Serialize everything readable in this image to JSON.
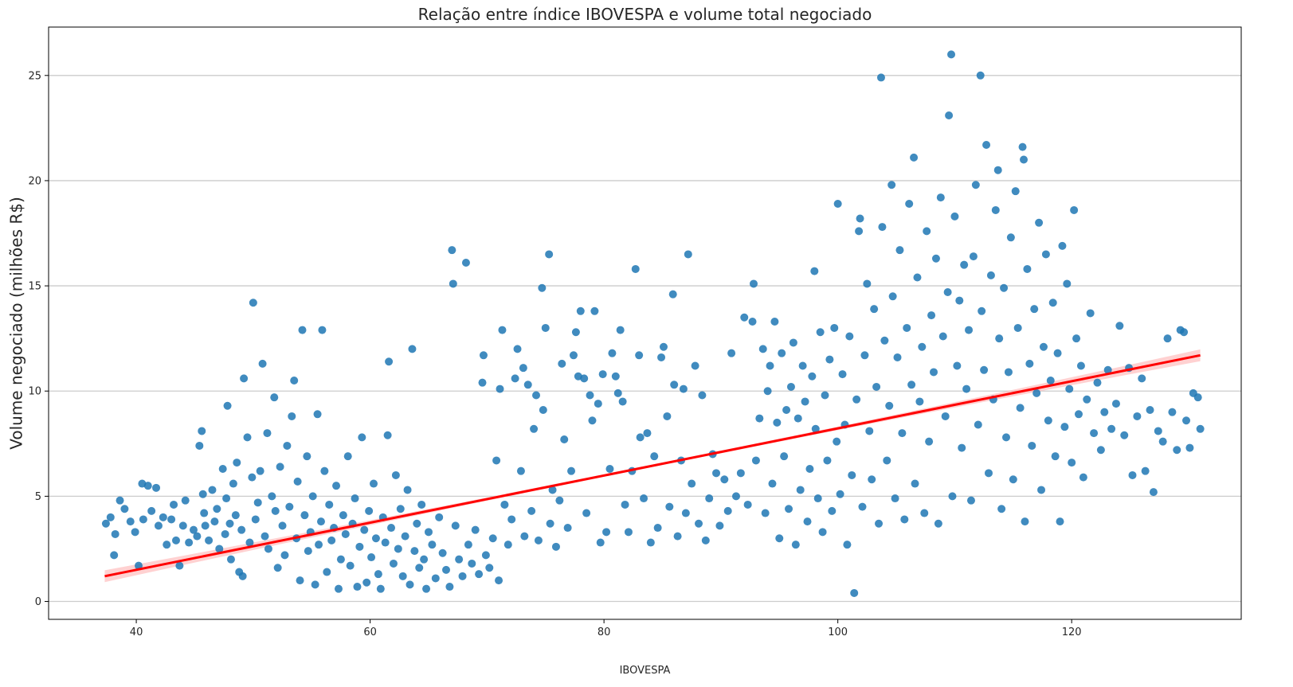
{
  "chart_data": {
    "type": "scatter",
    "title": "Relação entre índice IBOVESPA e volume total negociado",
    "xlabel": "IBOVESPA",
    "ylabel": "Volume negociado (milhões R$)",
    "xlim": [
      32.5,
      134.5
    ],
    "ylim": [
      -0.85,
      27.3
    ],
    "xticks": [
      40,
      60,
      80,
      100,
      120
    ],
    "yticks": [
      0,
      5,
      10,
      15,
      20,
      25
    ],
    "xtick_labels": [
      "40",
      "60",
      "80",
      "100",
      "120"
    ],
    "ytick_labels": [
      "0",
      "5",
      "10",
      "15",
      "20",
      "25"
    ],
    "grid": "horizontal",
    "colors": {
      "points": "#1f77b4",
      "regression_line": "#ff0000",
      "confidence_band": "#ffb3b3",
      "grid": "#cccccc",
      "axes": "#000000"
    },
    "regression": {
      "x_start": 37.3,
      "x_end": 131.0,
      "y_start": 1.2,
      "y_end": 11.7
    },
    "points": [
      [
        37.4,
        3.7
      ],
      [
        37.8,
        4.0
      ],
      [
        38.2,
        3.2
      ],
      [
        38.1,
        2.2
      ],
      [
        38.6,
        4.8
      ],
      [
        39.0,
        4.4
      ],
      [
        39.5,
        3.8
      ],
      [
        39.9,
        3.3
      ],
      [
        40.2,
        1.7
      ],
      [
        40.6,
        3.9
      ],
      [
        40.5,
        5.6
      ],
      [
        41.0,
        5.5
      ],
      [
        41.3,
        4.3
      ],
      [
        41.7,
        5.4
      ],
      [
        41.9,
        3.6
      ],
      [
        42.3,
        4.0
      ],
      [
        42.6,
        2.7
      ],
      [
        43.0,
        3.9
      ],
      [
        43.2,
        4.6
      ],
      [
        43.4,
        2.9
      ],
      [
        43.7,
        1.7
      ],
      [
        44.0,
        3.6
      ],
      [
        44.2,
        4.8
      ],
      [
        44.5,
        2.8
      ],
      [
        44.9,
        3.4
      ],
      [
        45.2,
        3.1
      ],
      [
        45.4,
        7.4
      ],
      [
        45.6,
        8.1
      ],
      [
        45.7,
        5.1
      ],
      [
        45.8,
        4.2
      ],
      [
        45.9,
        3.6
      ],
      [
        46.2,
        2.9
      ],
      [
        46.5,
        5.3
      ],
      [
        46.7,
        3.8
      ],
      [
        46.9,
        4.4
      ],
      [
        47.1,
        2.5
      ],
      [
        47.4,
        6.3
      ],
      [
        47.6,
        3.2
      ],
      [
        47.7,
        4.9
      ],
      [
        47.8,
        9.3
      ],
      [
        48.0,
        3.7
      ],
      [
        48.1,
        2.0
      ],
      [
        48.3,
        5.6
      ],
      [
        48.5,
        4.1
      ],
      [
        48.6,
        6.6
      ],
      [
        48.8,
        1.4
      ],
      [
        49.0,
        3.4
      ],
      [
        49.1,
        1.2
      ],
      [
        49.2,
        10.6
      ],
      [
        49.5,
        7.8
      ],
      [
        49.7,
        2.8
      ],
      [
        49.9,
        5.9
      ],
      [
        50.0,
        14.2
      ],
      [
        50.2,
        3.9
      ],
      [
        50.4,
        4.7
      ],
      [
        50.6,
        6.2
      ],
      [
        50.8,
        11.3
      ],
      [
        51.0,
        3.1
      ],
      [
        51.2,
        8.0
      ],
      [
        51.3,
        2.5
      ],
      [
        51.6,
        5.0
      ],
      [
        51.8,
        9.7
      ],
      [
        51.9,
        4.3
      ],
      [
        52.1,
        1.6
      ],
      [
        52.3,
        6.4
      ],
      [
        52.5,
        3.6
      ],
      [
        52.7,
        2.2
      ],
      [
        52.9,
        7.4
      ],
      [
        53.1,
        4.5
      ],
      [
        53.3,
        8.8
      ],
      [
        53.5,
        10.5
      ],
      [
        53.7,
        3.0
      ],
      [
        53.8,
        5.7
      ],
      [
        54.0,
        1.0
      ],
      [
        54.2,
        12.9
      ],
      [
        54.4,
        4.1
      ],
      [
        54.6,
        6.9
      ],
      [
        54.7,
        2.4
      ],
      [
        54.9,
        3.3
      ],
      [
        55.1,
        5.0
      ],
      [
        55.3,
        0.8
      ],
      [
        55.5,
        8.9
      ],
      [
        55.6,
        2.7
      ],
      [
        55.8,
        3.8
      ],
      [
        55.9,
        12.9
      ],
      [
        56.1,
        6.2
      ],
      [
        56.3,
        1.4
      ],
      [
        56.5,
        4.6
      ],
      [
        56.7,
        2.9
      ],
      [
        56.9,
        3.5
      ],
      [
        57.1,
        5.5
      ],
      [
        57.3,
        0.6
      ],
      [
        57.5,
        2.0
      ],
      [
        57.7,
        4.1
      ],
      [
        57.9,
        3.2
      ],
      [
        58.1,
        6.9
      ],
      [
        58.3,
        1.7
      ],
      [
        58.5,
        3.7
      ],
      [
        58.7,
        4.9
      ],
      [
        58.9,
        0.7
      ],
      [
        59.1,
        2.6
      ],
      [
        59.3,
        7.8
      ],
      [
        59.5,
        3.4
      ],
      [
        59.7,
        0.9
      ],
      [
        59.9,
        4.3
      ],
      [
        60.1,
        2.1
      ],
      [
        60.3,
        5.6
      ],
      [
        60.5,
        3.0
      ],
      [
        60.7,
        1.3
      ],
      [
        60.9,
        0.6
      ],
      [
        61.1,
        4.0
      ],
      [
        61.3,
        2.8
      ],
      [
        61.5,
        7.9
      ],
      [
        61.6,
        11.4
      ],
      [
        61.8,
        3.5
      ],
      [
        62.0,
        1.8
      ],
      [
        62.2,
        6.0
      ],
      [
        62.4,
        2.5
      ],
      [
        62.6,
        4.4
      ],
      [
        62.8,
        1.2
      ],
      [
        63.0,
        3.1
      ],
      [
        63.2,
        5.3
      ],
      [
        63.4,
        0.8
      ],
      [
        63.6,
        12.0
      ],
      [
        63.8,
        2.4
      ],
      [
        64.0,
        3.7
      ],
      [
        64.2,
        1.6
      ],
      [
        64.4,
        4.6
      ],
      [
        64.6,
        2.0
      ],
      [
        64.8,
        0.6
      ],
      [
        65.0,
        3.3
      ],
      [
        65.3,
        2.7
      ],
      [
        65.6,
        1.1
      ],
      [
        65.9,
        4.0
      ],
      [
        66.2,
        2.3
      ],
      [
        66.5,
        1.5
      ],
      [
        66.8,
        0.7
      ],
      [
        67.0,
        16.7
      ],
      [
        67.1,
        15.1
      ],
      [
        67.3,
        3.6
      ],
      [
        67.6,
        2.0
      ],
      [
        67.9,
        1.2
      ],
      [
        68.2,
        16.1
      ],
      [
        68.4,
        2.7
      ],
      [
        68.7,
        1.8
      ],
      [
        69.0,
        3.4
      ],
      [
        69.3,
        1.3
      ],
      [
        69.6,
        10.4
      ],
      [
        69.7,
        11.7
      ],
      [
        69.9,
        2.2
      ],
      [
        70.2,
        1.6
      ],
      [
        70.5,
        3.0
      ],
      [
        70.8,
        6.7
      ],
      [
        71.0,
        1.0
      ],
      [
        71.1,
        10.1
      ],
      [
        71.3,
        12.9
      ],
      [
        71.5,
        4.6
      ],
      [
        71.8,
        2.7
      ],
      [
        72.1,
        3.9
      ],
      [
        72.4,
        10.6
      ],
      [
        72.6,
        12.0
      ],
      [
        72.9,
        6.2
      ],
      [
        73.1,
        11.1
      ],
      [
        73.2,
        3.1
      ],
      [
        73.5,
        10.3
      ],
      [
        73.8,
        4.3
      ],
      [
        74.0,
        8.2
      ],
      [
        74.2,
        9.8
      ],
      [
        74.4,
        2.9
      ],
      [
        74.7,
        14.9
      ],
      [
        74.8,
        9.1
      ],
      [
        75.0,
        13.0
      ],
      [
        75.3,
        16.5
      ],
      [
        75.4,
        3.7
      ],
      [
        75.6,
        5.3
      ],
      [
        75.9,
        2.6
      ],
      [
        76.2,
        4.8
      ],
      [
        76.4,
        11.3
      ],
      [
        76.6,
        7.7
      ],
      [
        76.9,
        3.5
      ],
      [
        77.2,
        6.2
      ],
      [
        77.4,
        11.7
      ],
      [
        77.6,
        12.8
      ],
      [
        77.8,
        10.7
      ],
      [
        78.0,
        13.8
      ],
      [
        78.3,
        10.6
      ],
      [
        78.5,
        4.2
      ],
      [
        78.8,
        9.8
      ],
      [
        79.0,
        8.6
      ],
      [
        79.2,
        13.8
      ],
      [
        79.5,
        9.4
      ],
      [
        79.7,
        2.8
      ],
      [
        79.9,
        10.8
      ],
      [
        80.2,
        3.3
      ],
      [
        80.5,
        6.3
      ],
      [
        80.7,
        11.8
      ],
      [
        81.0,
        10.7
      ],
      [
        81.2,
        9.9
      ],
      [
        81.4,
        12.9
      ],
      [
        81.6,
        9.5
      ],
      [
        81.8,
        4.6
      ],
      [
        82.1,
        3.3
      ],
      [
        82.4,
        6.2
      ],
      [
        82.7,
        15.8
      ],
      [
        83.0,
        11.7
      ],
      [
        83.1,
        7.8
      ],
      [
        83.4,
        4.9
      ],
      [
        83.7,
        8.0
      ],
      [
        84.0,
        2.8
      ],
      [
        84.3,
        6.9
      ],
      [
        84.6,
        3.5
      ],
      [
        84.9,
        11.6
      ],
      [
        85.1,
        12.1
      ],
      [
        85.4,
        8.8
      ],
      [
        85.6,
        4.5
      ],
      [
        85.9,
        14.6
      ],
      [
        86.0,
        10.3
      ],
      [
        86.3,
        3.1
      ],
      [
        86.6,
        6.7
      ],
      [
        86.8,
        10.1
      ],
      [
        87.0,
        4.2
      ],
      [
        87.2,
        16.5
      ],
      [
        87.5,
        5.6
      ],
      [
        87.8,
        11.2
      ],
      [
        88.1,
        3.7
      ],
      [
        88.4,
        9.8
      ],
      [
        88.7,
        2.9
      ],
      [
        89.0,
        4.9
      ],
      [
        89.3,
        7.0
      ],
      [
        89.6,
        6.1
      ],
      [
        89.9,
        3.6
      ],
      [
        90.3,
        5.8
      ],
      [
        90.6,
        4.3
      ],
      [
        90.9,
        11.8
      ],
      [
        91.3,
        5.0
      ],
      [
        91.7,
        6.1
      ],
      [
        92.0,
        13.5
      ],
      [
        92.3,
        4.6
      ],
      [
        92.7,
        13.3
      ],
      [
        92.8,
        15.1
      ],
      [
        93.0,
        6.7
      ],
      [
        93.3,
        8.7
      ],
      [
        93.6,
        12.0
      ],
      [
        93.8,
        4.2
      ],
      [
        94.0,
        10.0
      ],
      [
        94.2,
        11.2
      ],
      [
        94.4,
        5.6
      ],
      [
        94.6,
        13.3
      ],
      [
        94.8,
        8.5
      ],
      [
        95.0,
        3.0
      ],
      [
        95.2,
        11.8
      ],
      [
        95.4,
        6.9
      ],
      [
        95.6,
        9.1
      ],
      [
        95.8,
        4.4
      ],
      [
        96.0,
        10.2
      ],
      [
        96.2,
        12.3
      ],
      [
        96.4,
        2.7
      ],
      [
        96.6,
        8.7
      ],
      [
        96.8,
        5.3
      ],
      [
        97.0,
        11.2
      ],
      [
        97.2,
        9.5
      ],
      [
        97.4,
        3.8
      ],
      [
        97.6,
        6.3
      ],
      [
        97.8,
        10.7
      ],
      [
        98.0,
        15.7
      ],
      [
        98.1,
        8.2
      ],
      [
        98.3,
        4.9
      ],
      [
        98.5,
        12.8
      ],
      [
        98.7,
        3.3
      ],
      [
        98.9,
        9.8
      ],
      [
        99.1,
        6.7
      ],
      [
        99.3,
        11.5
      ],
      [
        99.5,
        4.3
      ],
      [
        99.7,
        13.0
      ],
      [
        99.9,
        7.6
      ],
      [
        100.0,
        18.9
      ],
      [
        100.2,
        5.1
      ],
      [
        100.4,
        10.8
      ],
      [
        100.6,
        8.4
      ],
      [
        100.8,
        2.7
      ],
      [
        101.0,
        12.6
      ],
      [
        101.2,
        6.0
      ],
      [
        101.4,
        0.4
      ],
      [
        101.6,
        9.6
      ],
      [
        101.8,
        17.6
      ],
      [
        101.9,
        18.2
      ],
      [
        102.1,
        4.5
      ],
      [
        102.3,
        11.7
      ],
      [
        102.5,
        15.1
      ],
      [
        102.7,
        8.1
      ],
      [
        102.9,
        5.8
      ],
      [
        103.1,
        13.9
      ],
      [
        103.3,
        10.2
      ],
      [
        103.5,
        3.7
      ],
      [
        103.7,
        24.9
      ],
      [
        103.8,
        17.8
      ],
      [
        104.0,
        12.4
      ],
      [
        104.2,
        6.7
      ],
      [
        104.4,
        9.3
      ],
      [
        104.6,
        19.8
      ],
      [
        104.7,
        14.5
      ],
      [
        104.9,
        4.9
      ],
      [
        105.1,
        11.6
      ],
      [
        105.3,
        16.7
      ],
      [
        105.5,
        8.0
      ],
      [
        105.7,
        3.9
      ],
      [
        105.9,
        13.0
      ],
      [
        106.1,
        18.9
      ],
      [
        106.3,
        10.3
      ],
      [
        106.5,
        21.1
      ],
      [
        106.6,
        5.6
      ],
      [
        106.8,
        15.4
      ],
      [
        107.0,
        9.5
      ],
      [
        107.2,
        12.1
      ],
      [
        107.4,
        4.2
      ],
      [
        107.6,
        17.6
      ],
      [
        107.8,
        7.6
      ],
      [
        108.0,
        13.6
      ],
      [
        108.2,
        10.9
      ],
      [
        108.4,
        16.3
      ],
      [
        108.6,
        3.7
      ],
      [
        108.8,
        19.2
      ],
      [
        109.0,
        12.6
      ],
      [
        109.2,
        8.8
      ],
      [
        109.4,
        14.7
      ],
      [
        109.5,
        23.1
      ],
      [
        109.7,
        26.0
      ],
      [
        109.8,
        5.0
      ],
      [
        110.0,
        18.3
      ],
      [
        110.2,
        11.2
      ],
      [
        110.4,
        14.3
      ],
      [
        110.6,
        7.3
      ],
      [
        110.8,
        16.0
      ],
      [
        111.0,
        10.1
      ],
      [
        111.2,
        12.9
      ],
      [
        111.4,
        4.8
      ],
      [
        111.6,
        16.4
      ],
      [
        111.8,
        19.8
      ],
      [
        112.0,
        8.4
      ],
      [
        112.2,
        25.0
      ],
      [
        112.3,
        13.8
      ],
      [
        112.5,
        11.0
      ],
      [
        112.7,
        21.7
      ],
      [
        112.9,
        6.1
      ],
      [
        113.1,
        15.5
      ],
      [
        113.3,
        9.6
      ],
      [
        113.5,
        18.6
      ],
      [
        113.7,
        20.5
      ],
      [
        113.8,
        12.5
      ],
      [
        114.0,
        4.4
      ],
      [
        114.2,
        14.9
      ],
      [
        114.4,
        7.8
      ],
      [
        114.6,
        10.9
      ],
      [
        114.8,
        17.3
      ],
      [
        115.0,
        5.8
      ],
      [
        115.2,
        19.5
      ],
      [
        115.4,
        13.0
      ],
      [
        115.6,
        9.2
      ],
      [
        115.8,
        21.6
      ],
      [
        115.9,
        21.0
      ],
      [
        116.0,
        3.8
      ],
      [
        116.2,
        15.8
      ],
      [
        116.4,
        11.3
      ],
      [
        116.6,
        7.4
      ],
      [
        116.8,
        13.9
      ],
      [
        117.0,
        9.9
      ],
      [
        117.2,
        18.0
      ],
      [
        117.4,
        5.3
      ],
      [
        117.6,
        12.1
      ],
      [
        117.8,
        16.5
      ],
      [
        118.0,
        8.6
      ],
      [
        118.2,
        10.5
      ],
      [
        118.4,
        14.2
      ],
      [
        118.6,
        6.9
      ],
      [
        118.8,
        11.8
      ],
      [
        119.0,
        3.8
      ],
      [
        119.2,
        16.9
      ],
      [
        119.4,
        8.3
      ],
      [
        119.6,
        15.1
      ],
      [
        119.8,
        10.1
      ],
      [
        120.0,
        6.6
      ],
      [
        120.2,
        18.6
      ],
      [
        120.4,
        12.5
      ],
      [
        120.6,
        8.9
      ],
      [
        120.8,
        11.2
      ],
      [
        121.0,
        5.9
      ],
      [
        121.3,
        9.6
      ],
      [
        121.6,
        13.7
      ],
      [
        121.9,
        8.0
      ],
      [
        122.2,
        10.4
      ],
      [
        122.5,
        7.2
      ],
      [
        122.8,
        9.0
      ],
      [
        123.1,
        11.0
      ],
      [
        123.4,
        8.2
      ],
      [
        123.8,
        9.4
      ],
      [
        124.1,
        13.1
      ],
      [
        124.5,
        7.9
      ],
      [
        124.9,
        11.1
      ],
      [
        125.2,
        6.0
      ],
      [
        125.6,
        8.8
      ],
      [
        126.0,
        10.6
      ],
      [
        126.3,
        6.2
      ],
      [
        126.7,
        9.1
      ],
      [
        127.0,
        5.2
      ],
      [
        127.4,
        8.1
      ],
      [
        127.8,
        7.6
      ],
      [
        128.2,
        12.5
      ],
      [
        128.6,
        9.0
      ],
      [
        129.0,
        7.2
      ],
      [
        129.3,
        12.9
      ],
      [
        129.6,
        12.8
      ],
      [
        129.8,
        8.6
      ],
      [
        130.1,
        7.3
      ],
      [
        130.4,
        9.9
      ],
      [
        130.8,
        9.7
      ],
      [
        131.0,
        8.2
      ]
    ]
  }
}
